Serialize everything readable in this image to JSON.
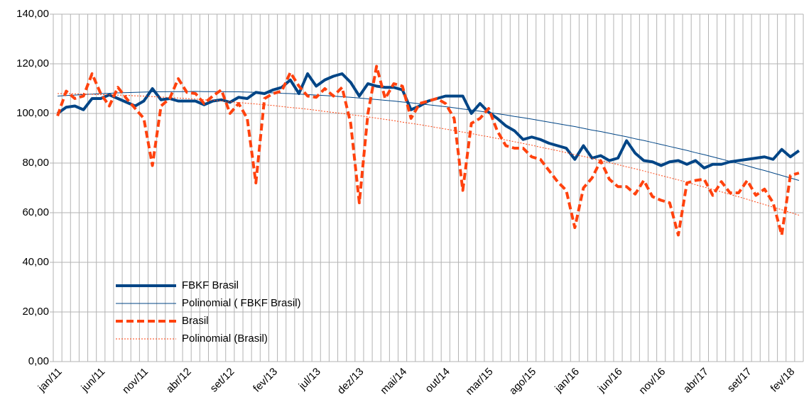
{
  "chart_data": {
    "type": "line",
    "categories": [
      "jan/11",
      null,
      null,
      null,
      null,
      "jun/11",
      null,
      null,
      null,
      null,
      "nov/11",
      null,
      null,
      null,
      null,
      "abr/12",
      null,
      null,
      null,
      null,
      "set/12",
      null,
      null,
      null,
      null,
      "fev/13",
      null,
      null,
      null,
      null,
      "jul/13",
      null,
      null,
      null,
      null,
      "dez/13",
      null,
      null,
      null,
      null,
      "mai/14",
      null,
      null,
      null,
      null,
      "out/14",
      null,
      null,
      null,
      null,
      "mar/15",
      null,
      null,
      null,
      null,
      "ago/15",
      null,
      null,
      null,
      null,
      "jan/16",
      null,
      null,
      null,
      null,
      "jun/16",
      null,
      null,
      null,
      null,
      "nov/16",
      null,
      null,
      null,
      null,
      "abr/17",
      null,
      null,
      null,
      null,
      "set/17",
      null,
      null,
      null,
      null,
      "fev/18",
      null
    ],
    "series": [
      {
        "name": "FBKF Brasil",
        "color": "#004586",
        "width": 4,
        "dash": "solid",
        "values": [
          100,
          102.5,
          103,
          101.5,
          106,
          106,
          107.5,
          106,
          104.5,
          103,
          105,
          110,
          105.5,
          106,
          105,
          105,
          105,
          103.5,
          105,
          105.5,
          104.5,
          106.5,
          106,
          108.5,
          108,
          109.5,
          110.5,
          113.5,
          108,
          116,
          111,
          113.5,
          115,
          116,
          112.5,
          107,
          112,
          111,
          110.5,
          110.5,
          109.5,
          101.5,
          103,
          105,
          106,
          107,
          107,
          107,
          100,
          104,
          100.5,
          98,
          95,
          93,
          89.5,
          90.5,
          89.5,
          88,
          87,
          86,
          81.5,
          87,
          82,
          83,
          81,
          82,
          89,
          84,
          81,
          80.5,
          79,
          80.5,
          81,
          79.5,
          81,
          78,
          79.5,
          79.5,
          80.5,
          81,
          81.5,
          82,
          82.5,
          81.5,
          85.5,
          82.5,
          85
        ]
      },
      {
        "name": "Polinomial ( FBKF Brasil)",
        "color": "#004586",
        "width": 1,
        "dash": "solid",
        "values": [
          107,
          107.2,
          107.4,
          107.6,
          107.8,
          108,
          108.1,
          108.3,
          108.4,
          108.5,
          108.6,
          108.7,
          108.7,
          108.8,
          108.8,
          108.8,
          108.9,
          108.8,
          108.8,
          108.8,
          108.7,
          108.7,
          108.6,
          108.5,
          108.4,
          108.3,
          108.1,
          108,
          107.8,
          107.6,
          107.4,
          107.2,
          107,
          106.7,
          106.5,
          106.2,
          105.9,
          105.6,
          105.3,
          105,
          104.6,
          104.3,
          103.9,
          103.5,
          103.1,
          102.7,
          102.3,
          101.8,
          101.4,
          100.9,
          100.4,
          99.9,
          99.4,
          98.8,
          98.3,
          97.7,
          97.1,
          96.5,
          95.9,
          95.3,
          94.7,
          94,
          93.3,
          92.7,
          92,
          91.3,
          90.6,
          89.8,
          89.1,
          88.3,
          87.5,
          86.7,
          85.9,
          85.1,
          84.2,
          83.4,
          82.5,
          81.6,
          80.7,
          79.8,
          78.9,
          77.9,
          77,
          76,
          75,
          74,
          73
        ]
      },
      {
        "name": "Brasil",
        "color": "#ff420e",
        "width": 4,
        "dash": "dashed",
        "values": [
          99,
          109,
          106,
          107,
          116,
          108,
          103,
          110.5,
          106,
          102,
          98,
          79,
          103,
          106,
          114,
          108.5,
          108,
          104,
          107,
          109.5,
          100,
          104,
          98,
          72,
          106,
          108,
          109,
          116.5,
          111,
          107,
          106.5,
          110,
          107,
          110.5,
          96,
          64,
          100,
          119,
          106,
          112,
          111,
          98,
          104,
          105,
          106,
          104,
          98,
          69,
          96,
          98,
          102,
          93,
          87,
          86,
          86,
          82.5,
          81.5,
          77,
          72.5,
          69,
          54,
          70,
          74,
          81,
          73.5,
          70.5,
          70.5,
          67.5,
          73,
          66.5,
          65,
          64,
          51,
          72,
          73,
          73.5,
          67,
          72.5,
          68,
          68,
          73,
          67,
          69.5,
          64,
          51,
          75,
          76
        ]
      },
      {
        "name": "Polinomial (Brasil)",
        "color": "#ff420e",
        "width": 1,
        "dash": "dotted",
        "values": [
          108,
          108,
          107.9,
          107.8,
          107.7,
          107.6,
          107.5,
          107.4,
          107.3,
          107.1,
          107,
          106.8,
          106.6,
          106.4,
          106.2,
          106,
          105.8,
          105.5,
          105.3,
          105,
          104.7,
          104.4,
          104.1,
          103.8,
          103.5,
          103.2,
          102.8,
          102.4,
          102.1,
          101.7,
          101.3,
          100.8,
          100.4,
          100,
          99.5,
          99.1,
          98.6,
          98.1,
          97.6,
          97.1,
          96.5,
          96,
          95.5,
          94.9,
          94.3,
          93.7,
          93.1,
          92.5,
          91.9,
          91.2,
          90.6,
          89.9,
          89.3,
          88.6,
          87.9,
          87.2,
          86.4,
          85.7,
          85,
          84.2,
          83.4,
          82.7,
          81.9,
          81,
          80.2,
          79.4,
          78.5,
          77.7,
          76.8,
          75.9,
          75,
          74.1,
          73.2,
          72.3,
          71.3,
          70.3,
          69.4,
          68.4,
          67.4,
          66.4,
          65.4,
          64.3,
          63.3,
          62.2,
          61.2,
          60.1,
          59
        ]
      }
    ],
    "ylim": [
      0,
      140
    ],
    "yticks": [
      {
        "value": 0,
        "label": "0,00"
      },
      {
        "value": 20,
        "label": "20,00"
      },
      {
        "value": 40,
        "label": "40,00"
      },
      {
        "value": 60,
        "label": "60,00"
      },
      {
        "value": 80,
        "label": "80,00"
      },
      {
        "value": 100,
        "label": "100,00"
      },
      {
        "value": 120,
        "label": "120,00"
      },
      {
        "value": 140,
        "label": "140,00"
      }
    ],
    "grid": true,
    "legend": "lower left"
  }
}
